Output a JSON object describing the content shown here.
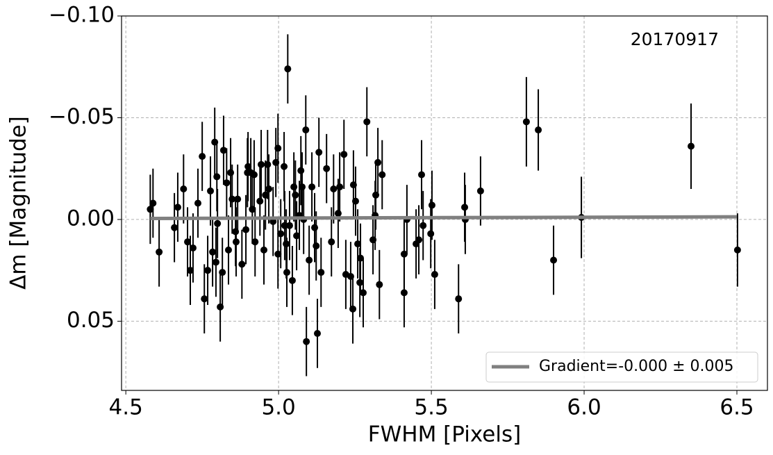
{
  "chart_data": {
    "type": "scatter",
    "annotation": "20170917",
    "xlabel": "FWHM [Pixels]",
    "ylabel": "Δm [Magnitude]",
    "xlim": [
      4.486,
      6.6
    ],
    "ylim": [
      0.084,
      -0.1
    ],
    "xticks": [
      4.5,
      {
        "value": 5,
        "label": "5.0"
      },
      5.5,
      {
        "value": 6,
        "label": "6.0"
      },
      6.5
    ],
    "yticks": [
      {
        "value": -0.1,
        "label": "−0.10"
      },
      {
        "value": -0.05,
        "label": "−0.05"
      },
      {
        "value": 0,
        "label": "0.00"
      },
      {
        "value": 0.05,
        "label": "0.05"
      }
    ],
    "grid": true,
    "legend_position": "lower right",
    "series": [
      {
        "color": "#000000",
        "x": [
          4.58,
          4.589,
          4.609,
          4.659,
          4.67,
          4.689,
          4.702,
          4.711,
          4.72,
          4.736,
          4.75,
          4.757,
          4.768,
          4.777,
          4.784,
          4.791,
          4.795,
          4.798,
          4.8,
          4.809,
          4.816,
          4.82,
          4.83,
          4.836,
          4.843,
          4.848,
          4.859,
          4.861,
          4.866,
          4.88,
          4.893,
          4.898,
          4.9,
          4.909,
          4.914,
          4.92,
          4.923,
          4.939,
          4.943,
          4.952,
          4.957,
          4.964,
          4.968,
          4.982,
          4.991,
          4.998,
          4.998,
          5.007,
          5.018,
          5.02,
          5.025,
          5.027,
          5.03,
          5.036,
          5.045,
          5.05,
          5.055,
          5.059,
          5.068,
          5.073,
          5.077,
          5.082,
          5.089,
          5.091,
          5.1,
          5.109,
          5.118,
          5.123,
          5.127,
          5.132,
          5.139,
          5.157,
          5.173,
          5.18,
          5.195,
          5.2,
          5.214,
          5.22,
          5.236,
          5.243,
          5.245,
          5.252,
          5.259,
          5.266,
          5.268,
          5.277,
          5.289,
          5.309,
          5.316,
          5.318,
          5.325,
          5.33,
          5.339,
          5.411,
          5.411,
          5.42,
          5.45,
          5.459,
          5.468,
          5.473,
          5.498,
          5.502,
          5.511,
          5.589,
          5.609,
          5.611,
          5.661,
          5.811,
          5.85,
          5.9,
          5.991,
          6.35,
          6.502
        ],
        "values": [
          -0.005,
          -0.008,
          0.016,
          0.004,
          -0.006,
          -0.015,
          0.011,
          0.025,
          0.014,
          -0.008,
          -0.031,
          0.039,
          0.025,
          -0.014,
          0.016,
          -0.038,
          0.021,
          -0.021,
          0.002,
          0.043,
          0.026,
          -0.034,
          -0.018,
          0.015,
          -0.023,
          -0.01,
          0.006,
          0.011,
          -0.01,
          0.022,
          0.005,
          -0.023,
          -0.026,
          -0.023,
          -0.005,
          -0.022,
          0.011,
          -0.009,
          -0.027,
          0.015,
          -0.012,
          -0.027,
          -0.015,
          0.001,
          -0.028,
          0.017,
          -0.035,
          0.007,
          -0.026,
          0.003,
          0.012,
          0.026,
          -0.074,
          0.003,
          0.03,
          -0.016,
          -0.012,
          0.008,
          -0.002,
          -0.024,
          -0.016,
          0.0,
          -0.044,
          0.06,
          0.02,
          -0.016,
          0.004,
          0.013,
          0.056,
          -0.033,
          0.026,
          -0.025,
          0.011,
          -0.015,
          -0.003,
          -0.016,
          -0.032,
          0.027,
          0.028,
          0.044,
          -0.017,
          -0.009,
          0.012,
          0.031,
          0.019,
          0.036,
          -0.048,
          0.01,
          -0.002,
          -0.012,
          -0.028,
          0.032,
          -0.022,
          0.017,
          0.036,
          0.0,
          0.012,
          0.01,
          -0.022,
          0.003,
          0.007,
          -0.007,
          0.027,
          0.039,
          -0.006,
          0.0,
          -0.014,
          -0.048,
          -0.044,
          0.02,
          -0.001,
          -0.036,
          0.015
        ],
        "errors": [
          0.017,
          0.017,
          0.017,
          0.017,
          0.017,
          0.017,
          0.017,
          0.017,
          0.017,
          0.017,
          0.017,
          0.017,
          0.017,
          0.017,
          0.017,
          0.017,
          0.017,
          0.017,
          0.017,
          0.017,
          0.017,
          0.017,
          0.017,
          0.017,
          0.017,
          0.017,
          0.017,
          0.017,
          0.017,
          0.017,
          0.017,
          0.017,
          0.017,
          0.017,
          0.017,
          0.017,
          0.017,
          0.017,
          0.017,
          0.017,
          0.017,
          0.017,
          0.017,
          0.017,
          0.017,
          0.017,
          0.017,
          0.017,
          0.017,
          0.017,
          0.017,
          0.017,
          0.017,
          0.017,
          0.017,
          0.017,
          0.017,
          0.017,
          0.017,
          0.017,
          0.017,
          0.017,
          0.017,
          0.017,
          0.017,
          0.017,
          0.017,
          0.017,
          0.017,
          0.017,
          0.017,
          0.017,
          0.017,
          0.017,
          0.017,
          0.017,
          0.017,
          0.017,
          0.017,
          0.017,
          0.017,
          0.017,
          0.017,
          0.017,
          0.017,
          0.017,
          0.017,
          0.017,
          0.017,
          0.017,
          0.017,
          0.017,
          0.017,
          0.017,
          0.017,
          0.017,
          0.017,
          0.017,
          0.017,
          0.017,
          0.017,
          0.017,
          0.017,
          0.017,
          0.017,
          0.017,
          0.017,
          0.022,
          0.02,
          0.017,
          0.02,
          0.021,
          0.018
        ]
      },
      {
        "name": "Gradient=-0.000 ± 0.005",
        "type": "line",
        "color": "#808080",
        "x": [
          4.58,
          6.5
        ],
        "values": [
          -0.0005,
          -0.0013
        ]
      }
    ]
  }
}
